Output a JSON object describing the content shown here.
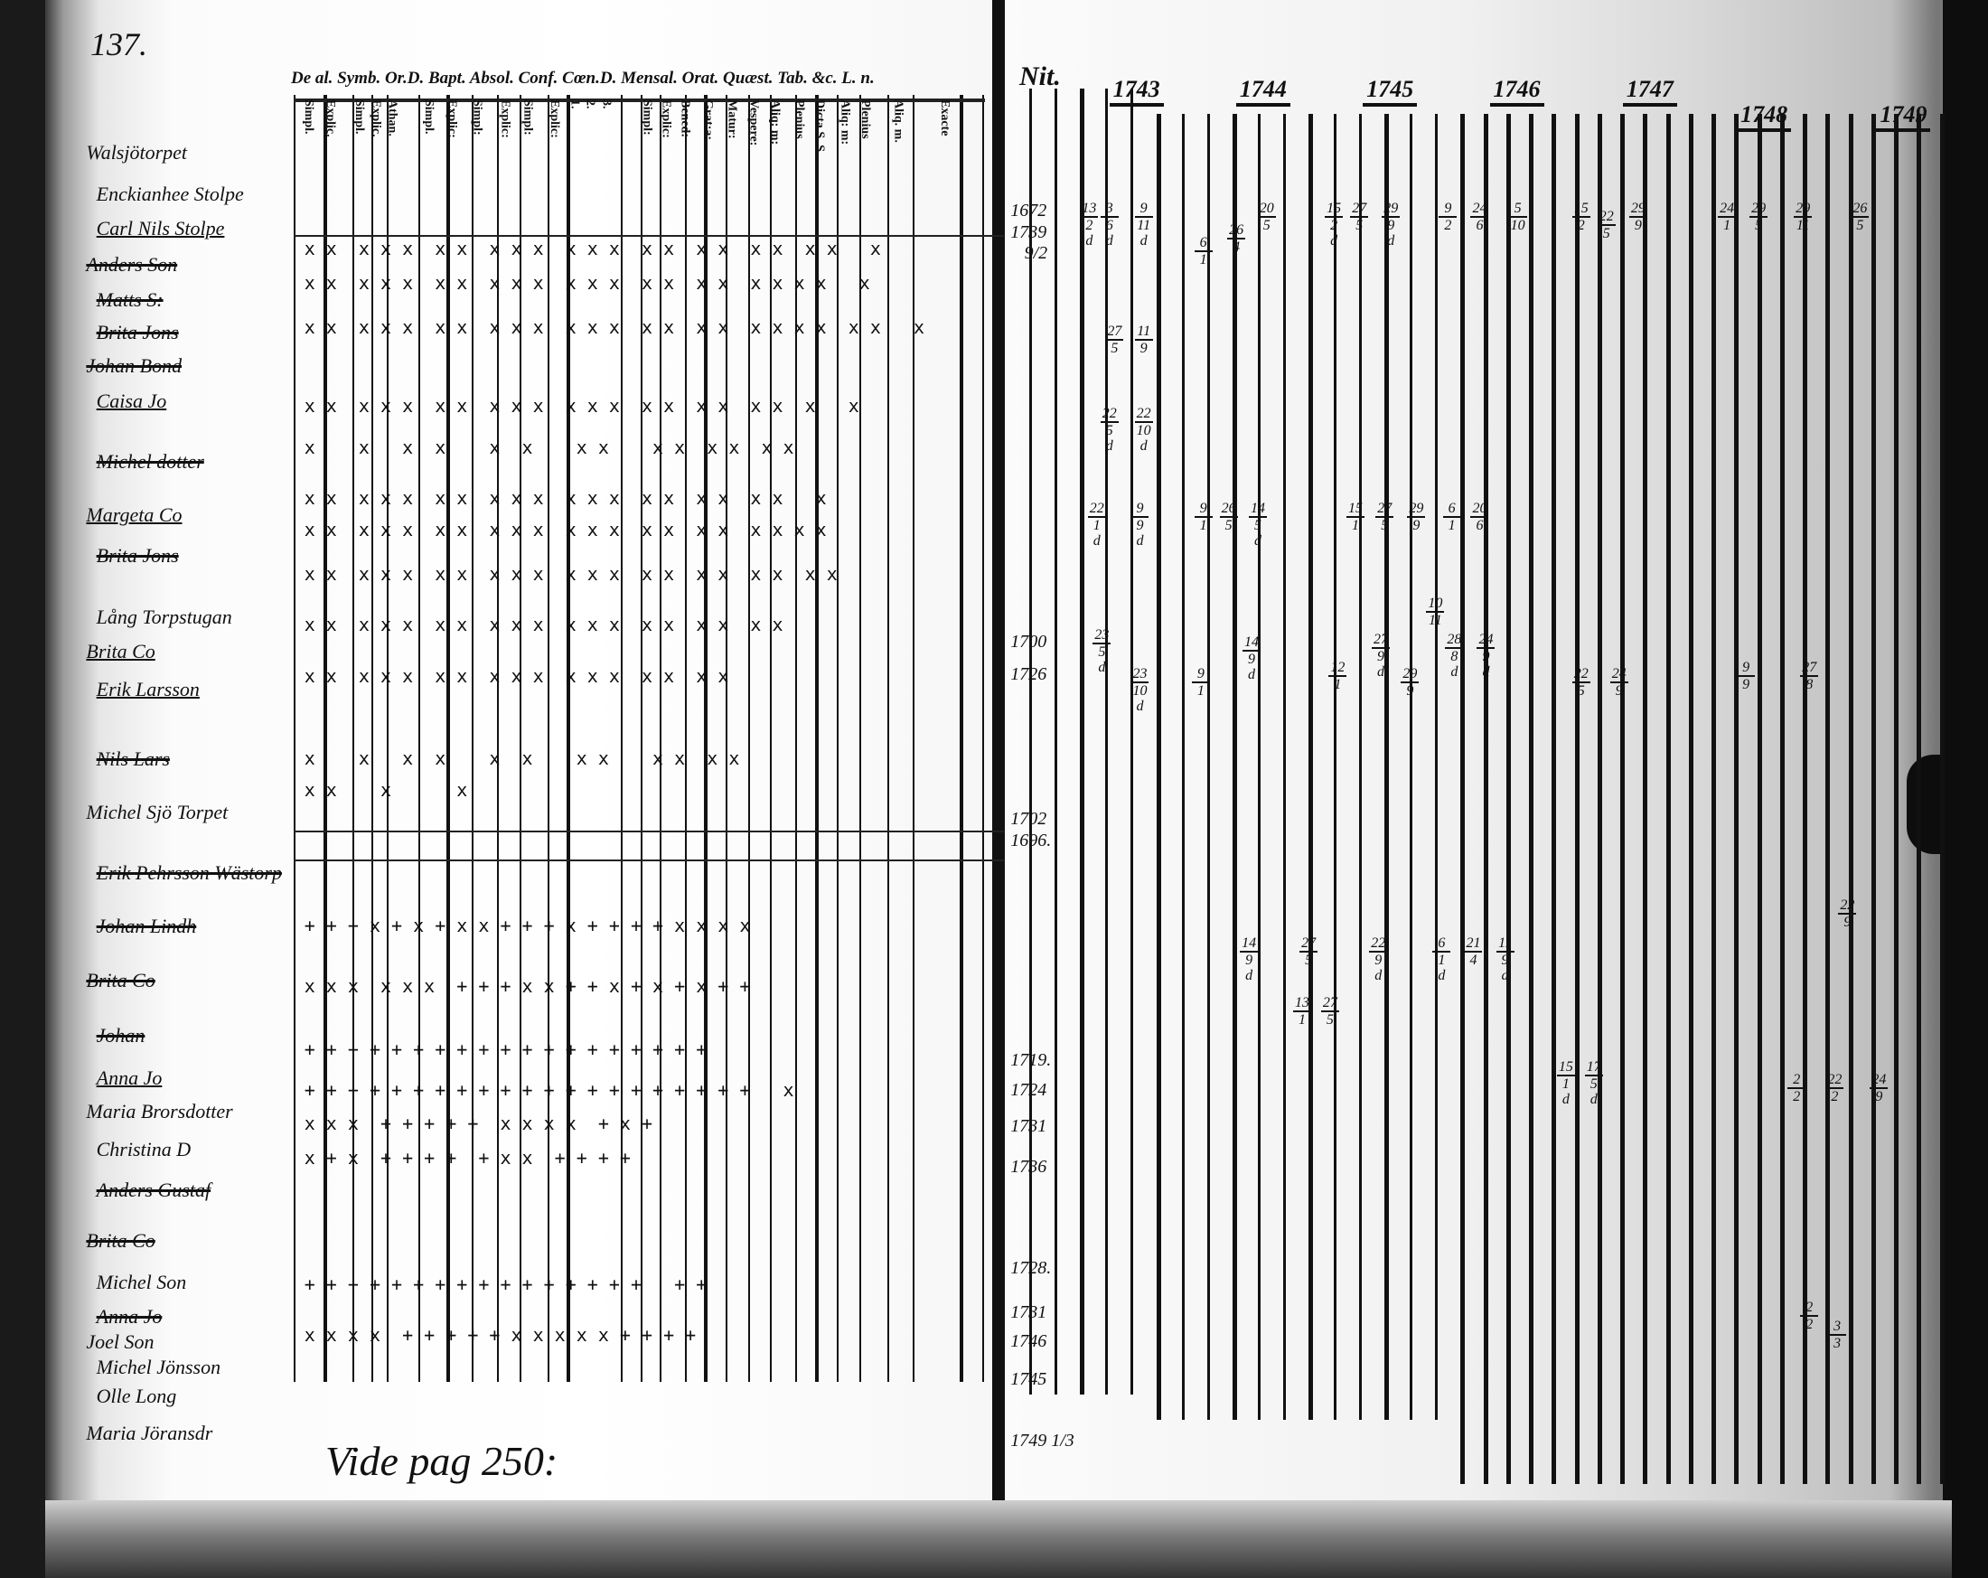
{
  "page_number": "137.",
  "left_page": {
    "header": "De al. Symb. Or.D. Bapt. Absol. Conf. Cœn.D. Mensal. Orat. Quæst. Tab. &c. L. n.",
    "column_headers": [
      "Simpl.",
      "Explic.",
      "Simpl.",
      "Explic.",
      "Athan.",
      "Simpl.",
      "Explic:",
      "Simpl:",
      "Explic:",
      "Simpl:",
      "Explic:",
      "1.",
      "2.",
      "3.",
      "Simpl:",
      "Explic:",
      "Bened:",
      "Grat:a:",
      "Matur:",
      "Vespere:",
      "Aliq: m:",
      "Plenius",
      "Dicta S. S.",
      "Aliq: m:",
      "Plenius",
      "Aliq. m.",
      "Exacte"
    ],
    "names": [
      {
        "text": "Walsjötorpet",
        "style": "plain"
      },
      {
        "text": "Enckianhee Stolpe",
        "style": "plain"
      },
      {
        "text": "Carl Nils Stolpe",
        "style": "under"
      },
      {
        "text": "Anders Son",
        "style": "struck"
      },
      {
        "text": "Matts S:",
        "style": "struck"
      },
      {
        "text": "Brita Jons",
        "style": "struck"
      },
      {
        "text": "Johan Bond",
        "style": "struck"
      },
      {
        "text": "Caisa Jo",
        "style": "under"
      },
      {
        "text": "Michel dotter",
        "style": "struck"
      },
      {
        "text": "Margeta Co",
        "style": "under"
      },
      {
        "text": "Brita Jons",
        "style": "struck"
      },
      {
        "text": "Lång Torpstugan",
        "style": "plain"
      },
      {
        "text": "Brita Co",
        "style": "under"
      },
      {
        "text": "Erik Larsson",
        "style": "under"
      },
      {
        "text": "Nils Lars",
        "style": "struck"
      },
      {
        "text": "Michel Sjö Torpet",
        "style": "plain"
      },
      {
        "text": "Erik Pehrsson Wästorp",
        "style": "struck"
      },
      {
        "text": "Johan Lindh",
        "style": "struck"
      },
      {
        "text": "Brita Co",
        "style": "struck"
      },
      {
        "text": "Johan",
        "style": "struck"
      },
      {
        "text": "Anna Jo",
        "style": "under"
      },
      {
        "text": "Maria Brorsdotter",
        "style": "plain"
      },
      {
        "text": "Christina D",
        "style": "plain"
      },
      {
        "text": "Anders Gustaf",
        "style": "struck"
      },
      {
        "text": "Brita Co",
        "style": "struck"
      },
      {
        "text": "Michel Son",
        "style": "plain"
      },
      {
        "text": "Anna Jo",
        "style": "struck"
      },
      {
        "text": "Joel Son",
        "style": "plain"
      },
      {
        "text": "Michel Jönsson",
        "style": "plain"
      },
      {
        "text": "Olle Long",
        "style": "plain"
      },
      {
        "text": "Maria Jöransdr",
        "style": "plain"
      }
    ],
    "mark_rows": [
      "x x  x x x  x x  x x x  x x x  x x  x x  x x  x x   x",
      "x x  x x x  x x  x x x  x x x  x x  x x  x x x x   x",
      "x x  x x x  x x  x x x  x x x  x x  x x  x x x x  x x   x",
      "x x  x x x  x x  x x x  x x x  x x  x x  x x  x   x",
      "x    x   x  x    x  x    x x    x x  x x  x x",
      "x x  x x x  x x  x x x  x x x  x x  x x  x x   x",
      "x x  x x x  x x  x x x  x x x  x x  x x  x x x x",
      "x x  x x x  x x  x x x  x x x  x x  x x  x x  x x",
      "x x  x x x  x x  x x x  x x x  x x  x x  x x",
      "x x  x x x  x x  x x x  x x x  x x  x x",
      "x    x   x  x    x  x    x x    x x  x x",
      "x x    x      x",
      "+ + + x + x + x x + + + x + + + + x x x x",
      "x x x  x x x  + + + x x + + x + x + x + +",
      "+ + + + + + + + + + + + + + + + + + +",
      "+ + + + + + + + + + + + + + + + + + + + +   x",
      "x x x  + + + + +  x x x x  + x +",
      "x + x  + + + +  + x x  + + + +",
      "+ + + + + + + + + + + + + + + +   + +",
      "x x x x  + + + + + x x x x x + + + +"
    ],
    "birth_years": [
      "1672",
      "1739",
      "9/2",
      "1700",
      "1726",
      "1702",
      "1696.",
      "1719.",
      "1724",
      "1731",
      "1736",
      "1728.",
      "1731",
      "1746",
      "1745",
      "1749 1/3"
    ],
    "note": "Vide pag 250:"
  },
  "right_page": {
    "header_label": "Nit.",
    "years": [
      "1743",
      "1744",
      "1745",
      "1746",
      "1747",
      "1748",
      "1749"
    ],
    "entries": [
      {
        "num": "13",
        "den": "2",
        "ex": "d"
      },
      {
        "num": "3",
        "den": "6",
        "ex": "d"
      },
      {
        "num": "9",
        "den": "11",
        "ex": "d"
      },
      {
        "num": "6",
        "den": "1",
        "ex": ""
      },
      {
        "num": "26",
        "den": "4",
        "ex": ""
      },
      {
        "num": "20",
        "den": "5",
        "ex": ""
      },
      {
        "num": "15",
        "den": "2",
        "ex": "d"
      },
      {
        "num": "27",
        "den": "5",
        "ex": ""
      },
      {
        "num": "29",
        "den": "9",
        "ex": "d"
      },
      {
        "num": "9",
        "den": "2",
        "ex": ""
      },
      {
        "num": "24",
        "den": "6",
        "ex": ""
      },
      {
        "num": "5",
        "den": "10",
        "ex": ""
      },
      {
        "num": "15",
        "den": "2",
        "ex": ""
      },
      {
        "num": "22",
        "den": "5",
        "ex": ""
      },
      {
        "num": "29",
        "den": "9",
        "ex": ""
      },
      {
        "num": "24",
        "den": "1",
        "ex": ""
      },
      {
        "num": "29",
        "den": "5",
        "ex": ""
      },
      {
        "num": "29",
        "den": "11",
        "ex": ""
      },
      {
        "num": "26",
        "den": "5",
        "ex": ""
      },
      {
        "num": "27",
        "den": "5",
        "ex": ""
      },
      {
        "num": "11",
        "den": "9",
        "ex": ""
      },
      {
        "num": "22",
        "den": "5",
        "ex": "d"
      },
      {
        "num": "22",
        "den": "10",
        "ex": "d"
      },
      {
        "num": "22",
        "den": "1",
        "ex": "d"
      },
      {
        "num": "9",
        "den": "9",
        "ex": "d"
      },
      {
        "num": "9",
        "den": "1",
        "ex": ""
      },
      {
        "num": "26",
        "den": "5",
        "ex": ""
      },
      {
        "num": "14",
        "den": "5",
        "ex": "d"
      },
      {
        "num": "15",
        "den": "1",
        "ex": ""
      },
      {
        "num": "27",
        "den": "5",
        "ex": ""
      },
      {
        "num": "29",
        "den": "9",
        "ex": ""
      },
      {
        "num": "6",
        "den": "1",
        "ex": ""
      },
      {
        "num": "20",
        "den": "6",
        "ex": ""
      },
      {
        "num": "23",
        "den": "5",
        "ex": "d"
      },
      {
        "num": "23",
        "den": "10",
        "ex": "d"
      },
      {
        "num": "9",
        "den": "1",
        "ex": ""
      },
      {
        "num": "14",
        "den": "9",
        "ex": "d"
      },
      {
        "num": "12",
        "den": "1",
        "ex": ""
      },
      {
        "num": "27",
        "den": "9",
        "ex": "d"
      },
      {
        "num": "29",
        "den": "9",
        "ex": ""
      },
      {
        "num": "10",
        "den": "11",
        "ex": ""
      },
      {
        "num": "28",
        "den": "8",
        "ex": "d"
      },
      {
        "num": "24",
        "den": "9",
        "ex": "d"
      },
      {
        "num": "22",
        "den": "5",
        "ex": ""
      },
      {
        "num": "24",
        "den": "9",
        "ex": ""
      },
      {
        "num": "9",
        "den": "9",
        "ex": ""
      },
      {
        "num": "27",
        "den": "8",
        "ex": ""
      },
      {
        "num": "22",
        "den": "9",
        "ex": ""
      },
      {
        "num": "14",
        "den": "9",
        "ex": "d"
      },
      {
        "num": "27",
        "den": "5",
        "ex": ""
      },
      {
        "num": "22",
        "den": "9",
        "ex": "d"
      },
      {
        "num": "6",
        "den": "1",
        "ex": "d"
      },
      {
        "num": "21",
        "den": "4",
        "ex": ""
      },
      {
        "num": "11",
        "den": "9",
        "ex": "d"
      },
      {
        "num": "13",
        "den": "1",
        "ex": ""
      },
      {
        "num": "27",
        "den": "5",
        "ex": ""
      },
      {
        "num": "15",
        "den": "1",
        "ex": "d"
      },
      {
        "num": "17",
        "den": "5",
        "ex": "d"
      },
      {
        "num": "2",
        "den": "2",
        "ex": ""
      },
      {
        "num": "22",
        "den": "2",
        "ex": ""
      },
      {
        "num": "24",
        "den": "9",
        "ex": ""
      },
      {
        "num": "2",
        "den": "2",
        "ex": ""
      },
      {
        "num": "3",
        "den": "3",
        "ex": ""
      }
    ]
  },
  "colors": {
    "ink": "#111111",
    "paper": "#fafafa",
    "frame": "#1a1a1a"
  }
}
